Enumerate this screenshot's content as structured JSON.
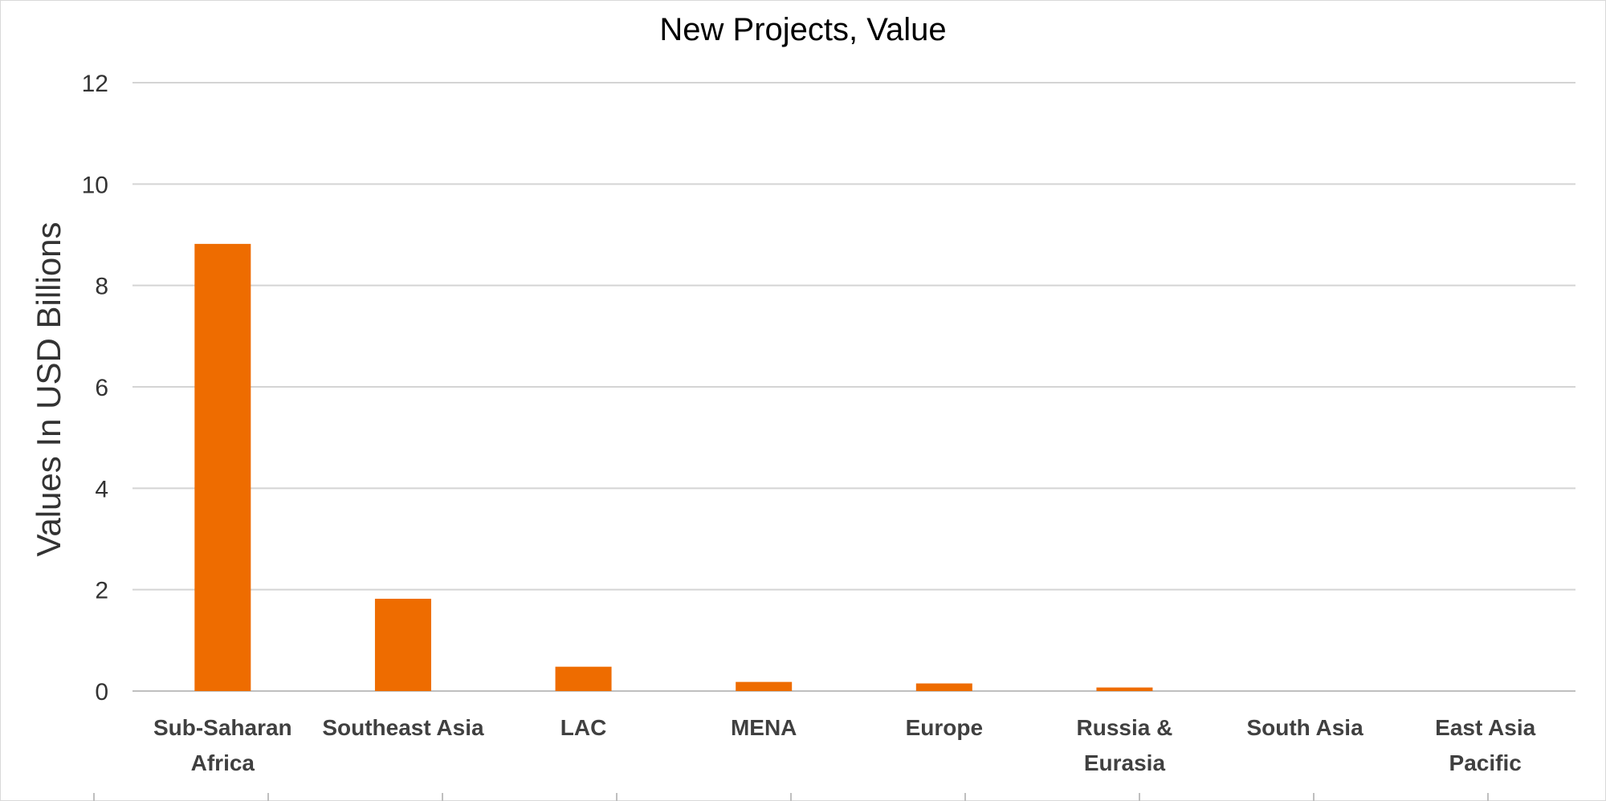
{
  "chart_data": {
    "type": "bar",
    "title": "New Projects, Value",
    "ylabel": "Values In USD Billions",
    "xlabel": "",
    "categories": [
      [
        "Sub-Saharan",
        "Africa"
      ],
      [
        "Southeast Asia"
      ],
      [
        "LAC"
      ],
      [
        "MENA"
      ],
      [
        "Europe"
      ],
      [
        "Russia &",
        "Eurasia"
      ],
      [
        "South Asia"
      ],
      [
        "East Asia",
        "Pacific"
      ]
    ],
    "values": [
      8.82,
      1.82,
      0.48,
      0.18,
      0.15,
      0.07,
      0,
      0
    ],
    "ylim": [
      0,
      12
    ],
    "yticks": [
      0,
      2,
      4,
      6,
      8,
      10,
      12
    ],
    "grid": true,
    "legend": "none",
    "bar_color": "#ee6c00"
  }
}
